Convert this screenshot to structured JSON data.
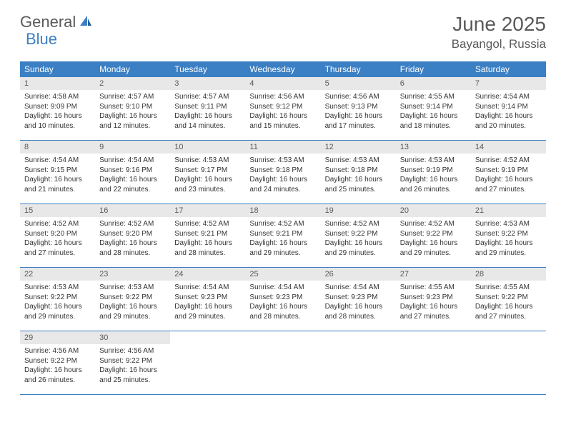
{
  "logo": {
    "main": "General",
    "accent": "Blue"
  },
  "title": "June 2025",
  "location": "Bayangol, Russia",
  "colors": {
    "header_bar": "#3b7fc4",
    "daynum_bg": "#e8e8e8",
    "text": "#333333",
    "muted": "#5a5a5a",
    "white": "#ffffff"
  },
  "weekdays": [
    "Sunday",
    "Monday",
    "Tuesday",
    "Wednesday",
    "Thursday",
    "Friday",
    "Saturday"
  ],
  "weeks": [
    [
      {
        "n": "1",
        "sr": "4:58 AM",
        "ss": "9:09 PM",
        "dh": "16",
        "dm": "10"
      },
      {
        "n": "2",
        "sr": "4:57 AM",
        "ss": "9:10 PM",
        "dh": "16",
        "dm": "12"
      },
      {
        "n": "3",
        "sr": "4:57 AM",
        "ss": "9:11 PM",
        "dh": "16",
        "dm": "14"
      },
      {
        "n": "4",
        "sr": "4:56 AM",
        "ss": "9:12 PM",
        "dh": "16",
        "dm": "15"
      },
      {
        "n": "5",
        "sr": "4:56 AM",
        "ss": "9:13 PM",
        "dh": "16",
        "dm": "17"
      },
      {
        "n": "6",
        "sr": "4:55 AM",
        "ss": "9:14 PM",
        "dh": "16",
        "dm": "18"
      },
      {
        "n": "7",
        "sr": "4:54 AM",
        "ss": "9:14 PM",
        "dh": "16",
        "dm": "20"
      }
    ],
    [
      {
        "n": "8",
        "sr": "4:54 AM",
        "ss": "9:15 PM",
        "dh": "16",
        "dm": "21"
      },
      {
        "n": "9",
        "sr": "4:54 AM",
        "ss": "9:16 PM",
        "dh": "16",
        "dm": "22"
      },
      {
        "n": "10",
        "sr": "4:53 AM",
        "ss": "9:17 PM",
        "dh": "16",
        "dm": "23"
      },
      {
        "n": "11",
        "sr": "4:53 AM",
        "ss": "9:18 PM",
        "dh": "16",
        "dm": "24"
      },
      {
        "n": "12",
        "sr": "4:53 AM",
        "ss": "9:18 PM",
        "dh": "16",
        "dm": "25"
      },
      {
        "n": "13",
        "sr": "4:53 AM",
        "ss": "9:19 PM",
        "dh": "16",
        "dm": "26"
      },
      {
        "n": "14",
        "sr": "4:52 AM",
        "ss": "9:19 PM",
        "dh": "16",
        "dm": "27"
      }
    ],
    [
      {
        "n": "15",
        "sr": "4:52 AM",
        "ss": "9:20 PM",
        "dh": "16",
        "dm": "27"
      },
      {
        "n": "16",
        "sr": "4:52 AM",
        "ss": "9:20 PM",
        "dh": "16",
        "dm": "28"
      },
      {
        "n": "17",
        "sr": "4:52 AM",
        "ss": "9:21 PM",
        "dh": "16",
        "dm": "28"
      },
      {
        "n": "18",
        "sr": "4:52 AM",
        "ss": "9:21 PM",
        "dh": "16",
        "dm": "29"
      },
      {
        "n": "19",
        "sr": "4:52 AM",
        "ss": "9:22 PM",
        "dh": "16",
        "dm": "29"
      },
      {
        "n": "20",
        "sr": "4:52 AM",
        "ss": "9:22 PM",
        "dh": "16",
        "dm": "29"
      },
      {
        "n": "21",
        "sr": "4:53 AM",
        "ss": "9:22 PM",
        "dh": "16",
        "dm": "29"
      }
    ],
    [
      {
        "n": "22",
        "sr": "4:53 AM",
        "ss": "9:22 PM",
        "dh": "16",
        "dm": "29"
      },
      {
        "n": "23",
        "sr": "4:53 AM",
        "ss": "9:22 PM",
        "dh": "16",
        "dm": "29"
      },
      {
        "n": "24",
        "sr": "4:54 AM",
        "ss": "9:23 PM",
        "dh": "16",
        "dm": "29"
      },
      {
        "n": "25",
        "sr": "4:54 AM",
        "ss": "9:23 PM",
        "dh": "16",
        "dm": "28"
      },
      {
        "n": "26",
        "sr": "4:54 AM",
        "ss": "9:23 PM",
        "dh": "16",
        "dm": "28"
      },
      {
        "n": "27",
        "sr": "4:55 AM",
        "ss": "9:23 PM",
        "dh": "16",
        "dm": "27"
      },
      {
        "n": "28",
        "sr": "4:55 AM",
        "ss": "9:22 PM",
        "dh": "16",
        "dm": "27"
      }
    ],
    [
      {
        "n": "29",
        "sr": "4:56 AM",
        "ss": "9:22 PM",
        "dh": "16",
        "dm": "26"
      },
      {
        "n": "30",
        "sr": "4:56 AM",
        "ss": "9:22 PM",
        "dh": "16",
        "dm": "25"
      },
      null,
      null,
      null,
      null,
      null
    ]
  ],
  "labels": {
    "sunrise": "Sunrise: ",
    "sunset": "Sunset: ",
    "daylight_pre": "Daylight: ",
    "hours": " hours",
    "and": "and ",
    "minutes": " minutes."
  }
}
